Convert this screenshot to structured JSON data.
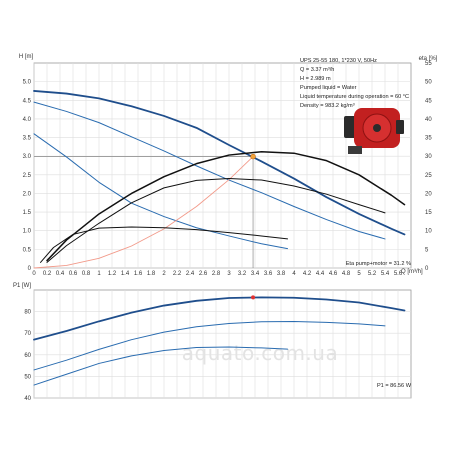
{
  "chart_data": [
    {
      "type": "line",
      "title": "",
      "xlabel": "Q [m³/h]",
      "ylabel_left": "H [m]",
      "ylabel_right": "eta [%]",
      "xlim": [
        0,
        5.8
      ],
      "ylim": [
        0,
        5.5
      ],
      "ylim_right": [
        0,
        55
      ],
      "grid": true,
      "x_ticks": [
        "0",
        "0.2",
        "0.4",
        "0.6",
        "0.8",
        "1",
        "1.2",
        "1.4",
        "1.6",
        "1.8",
        "2",
        "2.2",
        "2.4",
        "2.6",
        "2.8",
        "3",
        "3.2",
        "3.4",
        "3.6",
        "3.8",
        "4",
        "4.2",
        "4.4",
        "4.6",
        "4.8",
        "5",
        "5.2",
        "5.4",
        "5.6"
      ],
      "y_ticks": [
        "0",
        "0.5",
        "1.0",
        "1.5",
        "2.0",
        "2.5",
        "3.0",
        "3.5",
        "4.0",
        "4.5",
        "5.0"
      ],
      "y_ticks_right": [
        "0",
        "5",
        "10",
        "15",
        "20",
        "25",
        "30",
        "35",
        "40",
        "45",
        "50",
        "55"
      ],
      "info_lines": [
        "UPS 25-55 180, 1*230 V, 50Hz",
        "Q = 3.37 m³/h",
        "H = 2.989 m",
        "Pumped liquid = Water",
        "Liquid temperature during operation = 60 °C",
        "Density = 983.2 kg/m³"
      ],
      "eta_label": "Eta pump+motor = 31.2 %",
      "duty_point": {
        "x": 3.37,
        "y": 2.989
      },
      "series": [
        {
          "kind": "head",
          "axis": "left",
          "color": "#1f4e8c",
          "width": 1.8,
          "x": [
            0,
            0.5,
            1.0,
            1.5,
            2.0,
            2.5,
            3.0,
            3.5,
            4.0,
            4.5,
            5.0,
            5.5,
            5.7
          ],
          "y": [
            4.75,
            4.68,
            4.55,
            4.34,
            4.08,
            3.76,
            3.3,
            2.86,
            2.4,
            1.9,
            1.45,
            1.05,
            0.9
          ]
        },
        {
          "kind": "head",
          "axis": "left",
          "color": "#2a6cb0",
          "width": 1.0,
          "x": [
            0,
            0.5,
            1.0,
            1.5,
            2.0,
            2.5,
            3.0,
            3.5,
            4.0,
            4.5,
            5.0,
            5.4
          ],
          "y": [
            4.45,
            4.2,
            3.9,
            3.52,
            3.14,
            2.74,
            2.36,
            2.02,
            1.65,
            1.3,
            0.98,
            0.78
          ]
        },
        {
          "kind": "head",
          "axis": "left",
          "color": "#2a6cb0",
          "width": 1.0,
          "x": [
            0,
            0.5,
            1.0,
            1.5,
            2.0,
            2.5,
            3.0,
            3.5,
            3.9
          ],
          "y": [
            3.6,
            2.98,
            2.3,
            1.74,
            1.38,
            1.08,
            0.86,
            0.65,
            0.52
          ]
        },
        {
          "kind": "system",
          "axis": "left",
          "color": "#f29a8a",
          "width": 0.9,
          "x": [
            0,
            0.5,
            1.0,
            1.5,
            2.0,
            2.5,
            3.0,
            3.37
          ],
          "y": [
            0,
            0.07,
            0.26,
            0.59,
            1.05,
            1.65,
            2.37,
            2.989
          ]
        },
        {
          "kind": "eta",
          "axis": "right",
          "color": "#111111",
          "width": 1.5,
          "x": [
            0.2,
            0.5,
            1.0,
            1.5,
            2.0,
            2.5,
            3.0,
            3.5,
            4.0,
            4.5,
            5.0,
            5.5,
            5.7
          ],
          "y": [
            2,
            7.5,
            14.5,
            20,
            24.5,
            28,
            30.3,
            31.2,
            30.8,
            28.8,
            25,
            19.5,
            17
          ]
        },
        {
          "kind": "eta",
          "axis": "right",
          "color": "#111111",
          "width": 1.0,
          "x": [
            0.2,
            0.5,
            1.0,
            1.5,
            2.0,
            2.5,
            3.0,
            3.5,
            4.0,
            4.5,
            5.0,
            5.4
          ],
          "y": [
            1.5,
            6,
            12,
            17.5,
            21.5,
            23.5,
            24,
            23.6,
            22,
            19.8,
            17,
            14.8
          ]
        },
        {
          "kind": "eta",
          "axis": "right",
          "color": "#111111",
          "width": 1.0,
          "x": [
            0.1,
            0.3,
            0.6,
            1.0,
            1.5,
            2.0,
            2.5,
            3.0,
            3.5,
            3.9
          ],
          "y": [
            1.5,
            5.5,
            9,
            10.7,
            11,
            10.8,
            10.3,
            9.5,
            8.6,
            7.8
          ]
        }
      ]
    },
    {
      "type": "line",
      "title": "",
      "xlabel": "",
      "ylabel": "P1 [W]",
      "xlim": [
        0,
        5.8
      ],
      "ylim": [
        40,
        90
      ],
      "grid": true,
      "y_ticks": [
        "40",
        "50",
        "60",
        "70",
        "80"
      ],
      "p1_label": "P1 = 86.56 W",
      "duty_point": {
        "x": 3.37,
        "y": 86.56
      },
      "series": [
        {
          "color": "#1f4e8c",
          "width": 1.8,
          "x": [
            0,
            0.5,
            1.0,
            1.5,
            2.0,
            2.5,
            3.0,
            3.5,
            4.0,
            4.5,
            5.0,
            5.5,
            5.7
          ],
          "y": [
            67,
            71,
            75.5,
            79.5,
            82.8,
            85,
            86.3,
            86.6,
            86.4,
            85.6,
            84.2,
            81.6,
            80.5
          ]
        },
        {
          "color": "#2a6cb0",
          "width": 1.0,
          "x": [
            0,
            0.5,
            1.0,
            1.5,
            2.0,
            2.5,
            3.0,
            3.5,
            4.0,
            4.5,
            5.0,
            5.4
          ],
          "y": [
            53,
            57.5,
            62.5,
            67,
            70.5,
            73,
            74.5,
            75.3,
            75.4,
            75,
            74.3,
            73.4
          ]
        },
        {
          "color": "#2a6cb0",
          "width": 1.0,
          "x": [
            0,
            0.5,
            1.0,
            1.5,
            2.0,
            2.5,
            3.0,
            3.5,
            3.9
          ],
          "y": [
            46,
            51,
            56,
            59.5,
            62,
            63.4,
            63.6,
            63.2,
            62.6
          ]
        }
      ]
    }
  ],
  "watermark": "aquato.com.ua",
  "pump_image": {
    "icon": "circulation-pump-icon",
    "body_color": "#c22020",
    "motor_color": "#2b2b2b"
  }
}
